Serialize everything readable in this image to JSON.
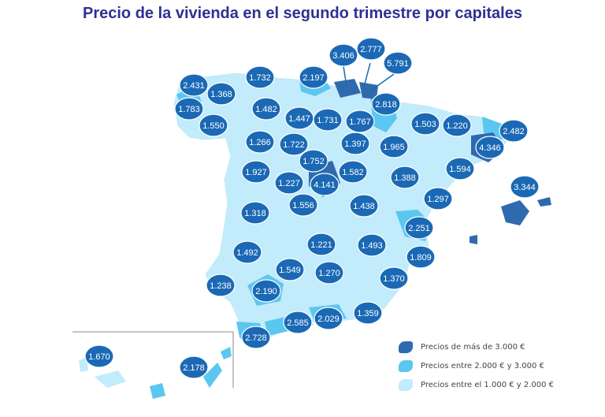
{
  "title": "Precio de la vivienda en el segundo trimestre por capitales",
  "colors": {
    "high": "#2f6aaf",
    "mid": "#5bc7f0",
    "low": "#c2ebfb",
    "bubble": "#1b69b5",
    "outline": "#ffffff"
  },
  "legend": [
    {
      "label": "Precios de más de 3.000 €",
      "color": "#2f6aaf"
    },
    {
      "label": "Precios entre 2.000 € y 3.000 €",
      "color": "#5bc7f0"
    },
    {
      "label": "Precios entre el 1.000 € y 2.000 €",
      "color": "#c2ebfb"
    }
  ],
  "prices": [
    "2.431",
    "1.368",
    "1.783",
    "1.550",
    "1.732",
    "2.197",
    "3.406",
    "2.777",
    "5.791",
    "1.482",
    "2.818",
    "1.447",
    "1.731",
    "1.767",
    "1.503",
    "1.220",
    "2.482",
    "1.266",
    "1.722",
    "1.397",
    "1.965",
    "4.346",
    "1.752",
    "1.927",
    "1.227",
    "4.141",
    "1.582",
    "1.388",
    "1.594",
    "3.344",
    "1.318",
    "1.556",
    "1.438",
    "1.297",
    "2.251",
    "1.492",
    "1.221",
    "1.493",
    "1.809",
    "1.549",
    "1.270",
    "1.238",
    "2.190",
    "1.370",
    "2.585",
    "2.029",
    "1.359",
    "2.728",
    "1.670",
    "2.178"
  ]
}
